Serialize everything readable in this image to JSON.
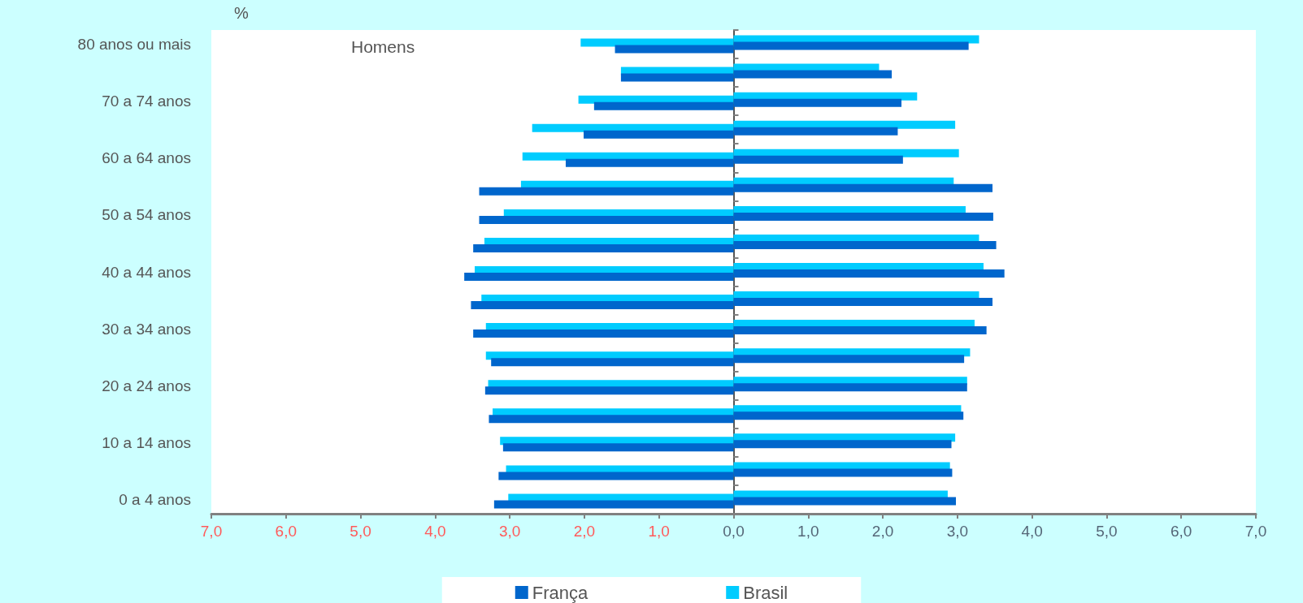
{
  "chart_data": {
    "type": "bar",
    "orientation": "horizontal",
    "categories": [
      "80 anos ou mais",
      null,
      "70 a 74 anos",
      null,
      "60 a 64 anos",
      null,
      "50 a 54 anos",
      null,
      "40 a 44 anos",
      null,
      "30 a 34 anos",
      null,
      "20 a 24 anos",
      null,
      "10 a 14 anos",
      null,
      "0 a 4 anos"
    ],
    "series": [
      {
        "name": "França",
        "color": "#0066cc",
        "values": [
          -1.59,
          -1.51,
          -1.87,
          -2.01,
          -2.25,
          -3.41,
          -3.41,
          -3.49,
          -3.61,
          -3.52,
          -3.49,
          -3.25,
          -3.33,
          -3.28,
          -3.09,
          -3.15,
          -3.21
        ]
      },
      {
        "color": "#0066cc",
        "values": [
          3.15,
          2.12,
          2.25,
          2.2,
          2.27,
          3.47,
          3.48,
          3.52,
          3.63,
          3.47,
          3.39,
          3.09,
          3.13,
          3.08,
          2.92,
          2.93,
          2.98
        ]
      },
      {
        "name": "Brasil",
        "color": "#00ccff",
        "values": [
          -2.05,
          -1.51,
          -2.08,
          -2.7,
          -2.83,
          -2.85,
          -3.08,
          -3.34,
          -3.47,
          -3.38,
          -3.32,
          -3.32,
          -3.29,
          -3.23,
          -3.13,
          -3.05,
          -3.02
        ]
      },
      {
        "color": "#00ccff",
        "values": [
          3.29,
          1.95,
          2.46,
          2.97,
          3.02,
          2.95,
          3.11,
          3.29,
          3.35,
          3.29,
          3.23,
          3.17,
          3.13,
          3.05,
          2.97,
          2.9,
          2.87
        ]
      }
    ],
    "xlim": [
      -7,
      7
    ],
    "xticks": [
      {
        "value": -7,
        "label": "7,0"
      },
      {
        "value": -6,
        "label": "6,0"
      },
      {
        "value": -5,
        "label": "5,0"
      },
      {
        "value": -4,
        "label": "4,0"
      },
      {
        "value": -3,
        "label": "3,0"
      },
      {
        "value": -2,
        "label": "2,0"
      },
      {
        "value": -1,
        "label": "1,0"
      },
      {
        "value": 0,
        "label": "0,0"
      },
      {
        "value": 1,
        "label": "1,0"
      },
      {
        "value": 2,
        "label": "2,0"
      },
      {
        "value": 3,
        "label": "3,0"
      },
      {
        "value": 4,
        "label": "4,0"
      },
      {
        "value": 5,
        "label": "5,0"
      },
      {
        "value": 6,
        "label": "6,0"
      },
      {
        "value": 7,
        "label": "7,0"
      }
    ],
    "annotations": [
      "%",
      "Homens"
    ],
    "legend": "bottom"
  }
}
